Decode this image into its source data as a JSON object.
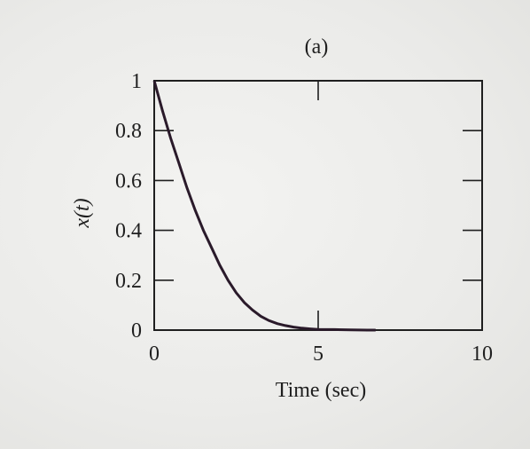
{
  "chart_data": {
    "type": "line",
    "title": "(a)",
    "xlabel": "Time (sec)",
    "ylabel": "x(t)",
    "xlim": [
      0,
      10
    ],
    "ylim": [
      0,
      1
    ],
    "x_ticks": [
      "0",
      "5",
      "10"
    ],
    "y_ticks": [
      "0",
      "0.2",
      "0.4",
      "0.6",
      "0.8",
      "1"
    ],
    "x_tick_values": [
      0,
      5,
      10
    ],
    "y_tick_values": [
      0,
      0.2,
      0.4,
      0.6,
      0.8,
      1
    ],
    "series": [
      {
        "x": [
          0,
          0.25,
          0.5,
          0.75,
          1.0,
          1.25,
          1.5,
          1.75,
          2.0,
          2.25,
          2.5,
          2.75,
          3.0,
          3.25,
          3.5,
          3.75,
          4.0,
          4.25,
          4.5,
          4.75,
          5.0,
          5.5,
          6.0,
          6.5,
          6.75
        ],
        "y": [
          1.0,
          0.88,
          0.77,
          0.67,
          0.57,
          0.48,
          0.4,
          0.33,
          0.26,
          0.2,
          0.15,
          0.11,
          0.08,
          0.055,
          0.038,
          0.026,
          0.018,
          0.012,
          0.008,
          0.005,
          0.003,
          0.002,
          0.001,
          0.0,
          0.0
        ]
      }
    ]
  }
}
